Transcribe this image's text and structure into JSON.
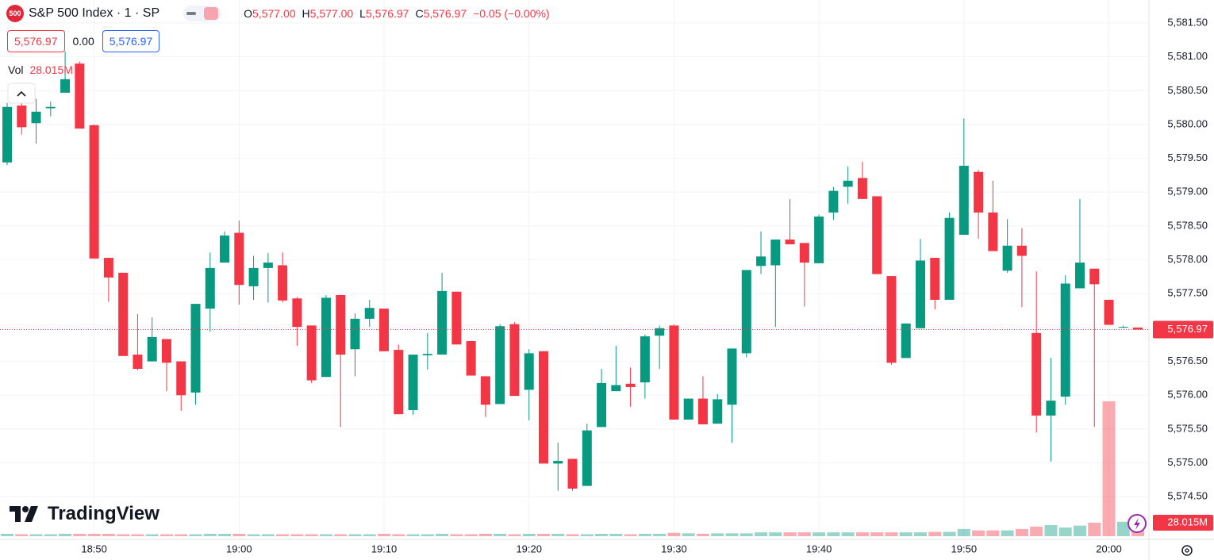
{
  "header": {
    "badge": "500",
    "symbol": "S&P 500 Index · 1 · SP",
    "ohlc": [
      {
        "key": "O",
        "value": "5,577.00"
      },
      {
        "key": "H",
        "value": "5,577.00"
      },
      {
        "key": "L",
        "value": "5,576.97"
      },
      {
        "key": "C",
        "value": "5,576.97"
      }
    ],
    "change": "−0.05 (−0.00%)",
    "bid": "5,576.97",
    "spread": "0.00",
    "ask": "5,576.97",
    "volume_label": "Vol"
  },
  "logo": "TradingView",
  "chart_data": {
    "type": "candlestick",
    "categories": [
      null,
      null,
      null,
      null,
      null,
      null,
      "18:50",
      null,
      null,
      null,
      null,
      null,
      null,
      null,
      null,
      null,
      "19:00",
      null,
      null,
      null,
      null,
      null,
      null,
      null,
      null,
      null,
      "19:10",
      null,
      null,
      null,
      null,
      null,
      null,
      null,
      null,
      null,
      "19:20",
      null,
      null,
      null,
      null,
      null,
      null,
      null,
      null,
      null,
      "19:30",
      null,
      null,
      null,
      null,
      null,
      null,
      null,
      null,
      null,
      "19:40",
      null,
      null,
      null,
      null,
      null,
      null,
      null,
      null,
      null,
      "19:50",
      null,
      null,
      null,
      null,
      null,
      null,
      null,
      null,
      null,
      "20:00",
      null,
      null
    ],
    "open": [
      5579.44,
      5580.28,
      5580.02,
      5580.24,
      5580.47,
      5580.9,
      5579.99,
      5578.03,
      5577.81,
      5576.6,
      5576.5,
      5576.83,
      5576.5,
      5576.04,
      5577.28,
      5577.96,
      5578.4,
      5577.61,
      5577.88,
      5577.92,
      5577.43,
      5577.03,
      5576.27,
      5577.48,
      5576.68,
      5577.13,
      5577.28,
      5576.67,
      5575.78,
      5576.59,
      5576.6,
      5577.53,
      5576.8,
      5576.28,
      5575.87,
      5577.05,
      5576.08,
      5576.65,
      5574.99,
      5575.06,
      5574.66,
      5575.53,
      5576.06,
      5576.17,
      5576.19,
      5576.88,
      5577.03,
      5575.64,
      5575.95,
      5575.58,
      5575.86,
      5576.62,
      5577.91,
      5577.92,
      5578.3,
      5578.25,
      5577.95,
      5578.7,
      5579.08,
      5579.21,
      5578.94,
      5577.76,
      5576.55,
      5576.99,
      5578.03,
      5577.41,
      5578.37,
      5579.3,
      5578.7,
      5577.84,
      5578.21,
      5576.92,
      5575.7,
      5575.98,
      5577.58,
      5577.87,
      5577.41,
      5577.0,
      5577.0
    ],
    "high": [
      5580.32,
      5580.34,
      5580.38,
      5580.34,
      5581.08,
      5580.93,
      5580.0,
      5578.03,
      5577.81,
      5577.2,
      5577.15,
      5576.83,
      5576.5,
      5577.35,
      5578.11,
      5578.42,
      5578.58,
      5578.06,
      5578.1,
      5578.11,
      5577.45,
      5577.03,
      5577.48,
      5577.48,
      5577.21,
      5577.41,
      5577.28,
      5576.75,
      5576.6,
      5576.92,
      5577.81,
      5577.53,
      5576.8,
      5576.28,
      5577.05,
      5577.08,
      5576.68,
      5576.65,
      5575.3,
      5575.06,
      5575.58,
      5576.39,
      5576.73,
      5576.41,
      5576.9,
      5577.03,
      5577.05,
      5575.95,
      5576.28,
      5576.02,
      5576.69,
      5577.85,
      5578.42,
      5578.3,
      5578.9,
      5578.25,
      5578.67,
      5579.08,
      5579.38,
      5579.45,
      5578.94,
      5577.76,
      5577.06,
      5578.31,
      5578.03,
      5578.7,
      5580.09,
      5579.33,
      5579.17,
      5578.6,
      5578.47,
      5577.83,
      5576.55,
      5577.77,
      5578.9,
      5577.87,
      5577.41,
      5577.03,
      5577.0
    ],
    "low": [
      5579.4,
      5579.85,
      5579.72,
      5580.12,
      5580.47,
      5579.94,
      5578.02,
      5577.38,
      5576.58,
      5576.37,
      5576.5,
      5576.06,
      5575.77,
      5575.86,
      5576.94,
      5577.96,
      5577.34,
      5577.41,
      5577.37,
      5577.37,
      5576.73,
      5576.18,
      5576.27,
      5575.53,
      5576.28,
      5577.01,
      5576.65,
      5575.72,
      5575.71,
      5576.38,
      5576.6,
      5576.75,
      5576.29,
      5575.68,
      5575.87,
      5575.99,
      5575.63,
      5574.99,
      5574.59,
      5574.59,
      5574.66,
      5575.53,
      5576.06,
      5575.83,
      5575.95,
      5576.39,
      5575.64,
      5575.64,
      5575.57,
      5575.58,
      5575.3,
      5576.56,
      5577.79,
      5577.01,
      5578.23,
      5577.31,
      5577.95,
      5578.59,
      5578.83,
      5578.9,
      5577.79,
      5576.45,
      5576.55,
      5576.99,
      5577.27,
      5577.41,
      5578.37,
      5578.31,
      5578.13,
      5577.81,
      5577.3,
      5575.45,
      5575.02,
      5575.86,
      5577.58,
      5575.53,
      5577.04,
      5576.99,
      5576.97
    ],
    "close": [
      5580.26,
      5579.96,
      5580.19,
      5580.26,
      5580.67,
      5579.94,
      5578.02,
      5577.74,
      5576.58,
      5576.39,
      5576.86,
      5576.48,
      5576.0,
      5577.35,
      5577.88,
      5578.36,
      5577.63,
      5577.88,
      5577.96,
      5577.4,
      5577.01,
      5576.22,
      5577.44,
      5576.6,
      5577.13,
      5577.29,
      5576.65,
      5575.72,
      5576.6,
      5576.61,
      5577.54,
      5576.75,
      5576.29,
      5575.86,
      5577.02,
      5575.99,
      5576.62,
      5574.99,
      5575.03,
      5574.62,
      5575.48,
      5576.18,
      5576.15,
      5576.12,
      5576.87,
      5576.99,
      5575.64,
      5575.95,
      5575.57,
      5575.94,
      5576.69,
      5577.85,
      5578.05,
      5578.3,
      5578.23,
      5577.96,
      5578.64,
      5579.02,
      5579.17,
      5578.9,
      5577.79,
      5576.48,
      5577.06,
      5577.99,
      5577.41,
      5578.62,
      5579.39,
      5578.7,
      5578.13,
      5578.21,
      5578.06,
      5575.7,
      5575.92,
      5577.65,
      5577.96,
      5577.64,
      5577.04,
      5577.01,
      5576.97
    ],
    "up_color": "#089981",
    "down_color": "#f23645",
    "volume": {
      "values": [
        5000000,
        4000000,
        4000000,
        4000000,
        5000000,
        5000000,
        5000000,
        5000000,
        4000000,
        4000000,
        4000000,
        4000000,
        4000000,
        4000000,
        5000000,
        5000000,
        5000000,
        4000000,
        4000000,
        4000000,
        4000000,
        4000000,
        4000000,
        4000000,
        4000000,
        4000000,
        5000000,
        4000000,
        4000000,
        4000000,
        5000000,
        4000000,
        4000000,
        5000000,
        5000000,
        4000000,
        5000000,
        5000000,
        5000000,
        4000000,
        4000000,
        5000000,
        5000000,
        4000000,
        5000000,
        5000000,
        7000000,
        6000000,
        5000000,
        6000000,
        6000000,
        6000000,
        8000000,
        8000000,
        8000000,
        8000000,
        8000000,
        8000000,
        8000000,
        8000000,
        8000000,
        8000000,
        8000000,
        8000000,
        9000000,
        9000000,
        15000000,
        12000000,
        12000000,
        12000000,
        15000000,
        20000000,
        23000000,
        18000000,
        22000000,
        28000000,
        280000000,
        30000000,
        28015000
      ],
      "last": {
        "value": 28015000,
        "label": "28.015M"
      },
      "ylim": [
        0,
        400000000
      ],
      "up_color": "rgba(8,153,129,0.42)",
      "down_color": "rgba(242,54,69,0.42)"
    },
    "last_price": {
      "value": 5576.97,
      "label": "5,576.97"
    },
    "ylim": [
      5573.87,
      5581.84
    ],
    "yticks": [
      {
        "value": 5574.5,
        "label": "5,574.50"
      },
      {
        "value": 5575,
        "label": "5,575.00"
      },
      {
        "value": 5575.5,
        "label": "5,575.50"
      },
      {
        "value": 5576,
        "label": "5,576.00"
      },
      {
        "value": 5576.5,
        "label": "5,576.50"
      },
      {
        "value": 5577,
        "label": "5,577.00"
      },
      {
        "value": 5577.5,
        "label": "5,577.50"
      },
      {
        "value": 5578,
        "label": "5,578.00"
      },
      {
        "value": 5578.5,
        "label": "5,578.50"
      },
      {
        "value": 5579,
        "label": "5,579.00"
      },
      {
        "value": 5579.5,
        "label": "5,579.50"
      },
      {
        "value": 5580,
        "label": "5,580.00"
      },
      {
        "value": 5580.5,
        "label": "5,580.50"
      },
      {
        "value": 5581,
        "label": "5,581.00"
      },
      {
        "value": 5581.5,
        "label": "5,581.50"
      }
    ],
    "grid": true
  }
}
